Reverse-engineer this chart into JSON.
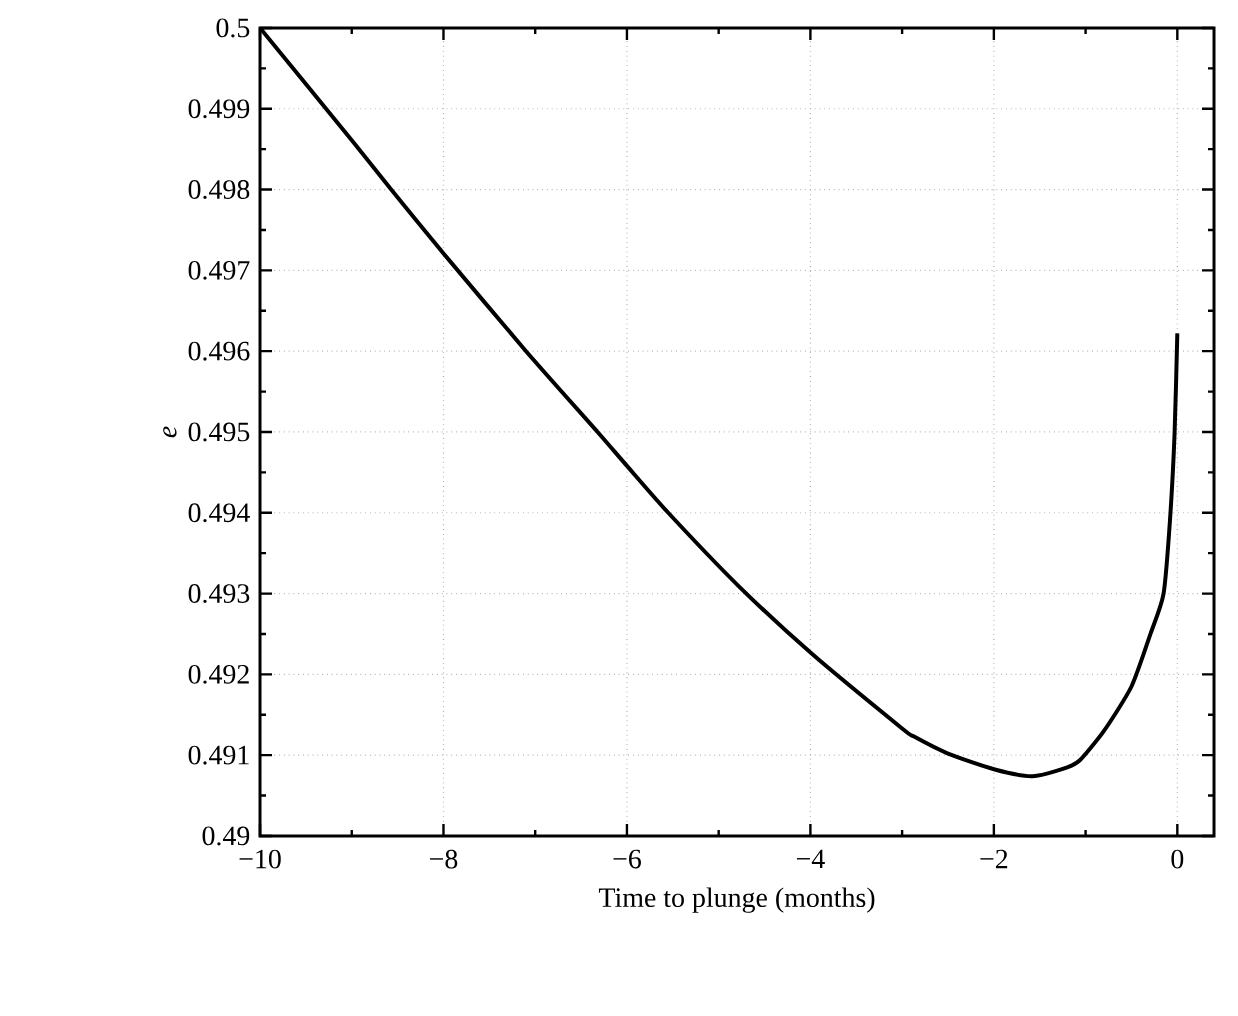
{
  "chart_data": {
    "type": "line",
    "xlabel": "Time to plunge (months)",
    "ylabel": "e",
    "x": [
      -10,
      -9,
      -8.57,
      -8,
      -7.1,
      -6.32,
      -6,
      -5.55,
      -4.78,
      -3.99,
      -3,
      -2.87,
      -2.5,
      -1.98,
      -1.58,
      -1.2,
      -1.06,
      -0.8,
      -0.5,
      -0.29,
      -0.15,
      -0.08,
      -0.03,
      0
    ],
    "series": [
      {
        "color": "#000000",
        "values": [
          0.5,
          0.49861,
          0.498,
          0.49721,
          0.496,
          0.495,
          0.49458,
          0.494,
          0.49309,
          0.49226,
          0.49133,
          0.49123,
          0.49102,
          0.49082,
          0.49074,
          0.49085,
          0.49094,
          0.4913,
          0.49185,
          0.49251,
          0.493,
          0.49391,
          0.49498,
          0.49622
        ]
      }
    ],
    "xlim": [
      -10,
      0.4
    ],
    "ylim": [
      0.49,
      0.5
    ],
    "xticks": [
      {
        "value": -10,
        "label": "−10"
      },
      {
        "value": -8,
        "label": "−8"
      },
      {
        "value": -6,
        "label": "−6"
      },
      {
        "value": -4,
        "label": "−4"
      },
      {
        "value": -2,
        "label": "−2"
      },
      0
    ],
    "yticks": [
      0.49,
      0.491,
      0.492,
      0.493,
      0.494,
      0.495,
      0.496,
      0.497,
      0.498,
      0.499,
      0.5
    ],
    "grid": true,
    "marker": "none",
    "line_style": "solid"
  }
}
